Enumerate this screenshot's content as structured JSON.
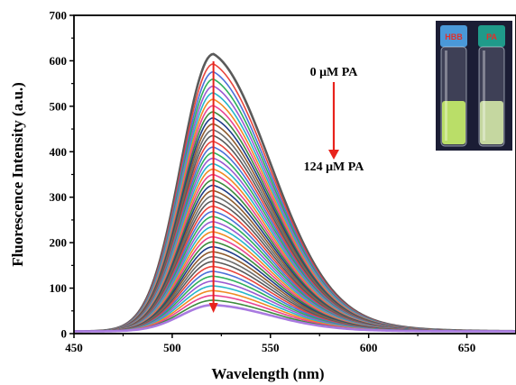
{
  "chart_data": {
    "type": "line",
    "title": "",
    "xlabel": "Wavelength (nm)",
    "ylabel": "Fluorescence Intensity (a.u.)",
    "xlim": [
      450,
      675
    ],
    "ylim": [
      0,
      700
    ],
    "xticks": [
      450,
      500,
      550,
      600,
      650
    ],
    "yticks": [
      0,
      100,
      200,
      300,
      400,
      500,
      600,
      700
    ],
    "peak_wavelength_nm": 521,
    "peak_intensity_max": 615,
    "peak_intensity_min": 63,
    "series_count": 46,
    "baseline_intensity": 5,
    "series_colors": [
      "#5a5a5a",
      "#e8453c",
      "#4c6fd8",
      "#2faf5a",
      "#9b59d0",
      "#27b6c9",
      "#f08a24",
      "#e84393",
      "#3d8b3d",
      "#1f3c88",
      "#8e5b2e",
      "#6c6c6c"
    ],
    "last_series_color": "#a97ae0",
    "annotations": [
      {
        "text": "0 μM PA"
      },
      {
        "text": "124 μM PA"
      }
    ],
    "arrow_color": "#e8231c",
    "inset": {
      "vial_labels": [
        "HBB",
        "PA"
      ],
      "background": "#1b1d35",
      "cap_colors": [
        "#4a98d8",
        "#1f9a8a"
      ],
      "solution_colors": [
        "#c8f06a",
        "#d4e8a8"
      ]
    }
  }
}
